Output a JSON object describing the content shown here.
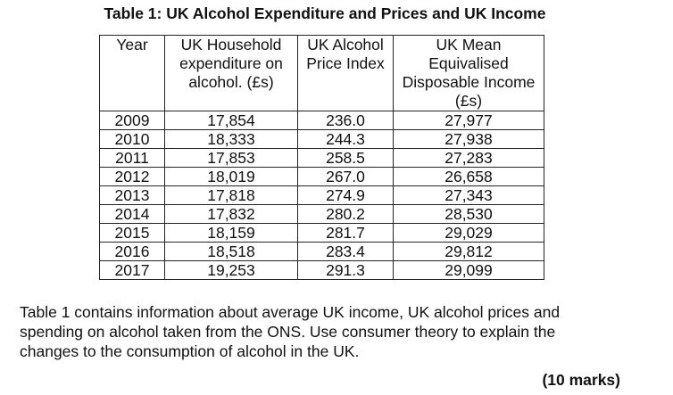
{
  "title": "Table 1: UK Alcohol Expenditure and Prices and UK Income",
  "table": {
    "headers": [
      [
        "Year"
      ],
      [
        "UK Household",
        "expenditure on",
        "alcohol. (£s)"
      ],
      [
        "UK Alcohol",
        "Price Index"
      ],
      [
        "UK Mean",
        "Equivalised",
        "Disposable Income",
        "(£s)"
      ]
    ],
    "rows": [
      [
        "2009",
        "17,854",
        "236.0",
        "27,977"
      ],
      [
        "2010",
        "18,333",
        "244.3",
        "27,938"
      ],
      [
        "2011",
        "17,853",
        "258.5",
        "27,283"
      ],
      [
        "2012",
        "18,019",
        "267.0",
        "26,658"
      ],
      [
        "2013",
        "17,818",
        "274.9",
        "27,343"
      ],
      [
        "2014",
        "17,832",
        "280.2",
        "28,530"
      ],
      [
        "2015",
        "18,159",
        "281.7",
        "29,029"
      ],
      [
        "2016",
        "18,518",
        "283.4",
        "29,812"
      ],
      [
        "2017",
        "19,253",
        "291.3",
        "29,099"
      ]
    ]
  },
  "question": {
    "lines": [
      "Table 1 contains information about average UK income, UK alcohol prices and",
      "spending on alcohol taken from the ONS. Use consumer theory to explain the",
      "changes to the consumption of alcohol in the UK."
    ],
    "marks": "(10 marks)"
  }
}
